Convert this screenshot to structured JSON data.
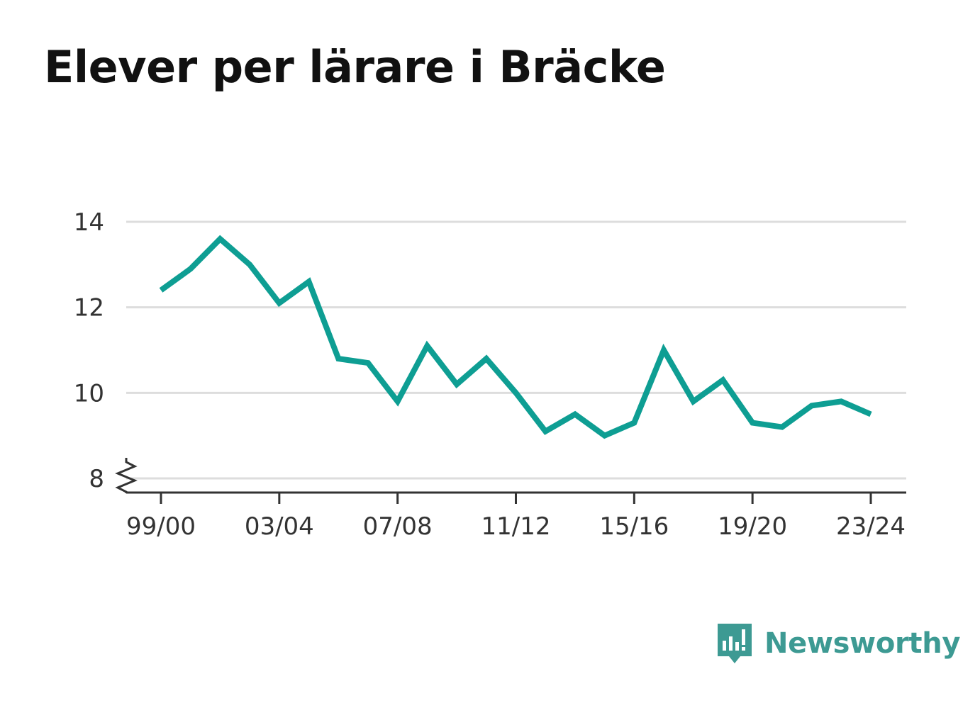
{
  "title": "Elever per lärare i Bräcke",
  "brand": {
    "name": "Newsworthy",
    "color": "#3d9a93",
    "icon": "bar-chart-speech-bubble-icon"
  },
  "colors": {
    "line": "#0e9e93",
    "grid": "#dddddd",
    "axis": "#333333"
  },
  "chart_data": {
    "type": "line",
    "title": "Elever per lärare i Bräcke",
    "xlabel": "",
    "ylabel": "",
    "ylim": [
      8,
      14
    ],
    "yticks": [
      8,
      10,
      12,
      14
    ],
    "y_axis_break": true,
    "grid": true,
    "legend": "none",
    "x": [
      "99/00",
      "00/01",
      "01/02",
      "02/03",
      "03/04",
      "04/05",
      "05/06",
      "06/07",
      "07/08",
      "08/09",
      "09/10",
      "10/11",
      "11/12",
      "12/13",
      "13/14",
      "14/15",
      "15/16",
      "16/17",
      "17/18",
      "18/19",
      "19/20",
      "20/21",
      "21/22",
      "22/23",
      "23/24"
    ],
    "xtick_labels": [
      "99/00",
      "03/04",
      "07/08",
      "11/12",
      "15/16",
      "19/20",
      "23/24"
    ],
    "series": [
      {
        "values": [
          12.4,
          12.9,
          13.6,
          13.0,
          12.1,
          12.6,
          10.8,
          10.7,
          9.8,
          11.1,
          10.2,
          10.8,
          10.0,
          9.1,
          9.5,
          9.0,
          9.3,
          11.0,
          9.8,
          10.3,
          9.3,
          9.2,
          9.7,
          9.8,
          9.5
        ]
      }
    ]
  }
}
